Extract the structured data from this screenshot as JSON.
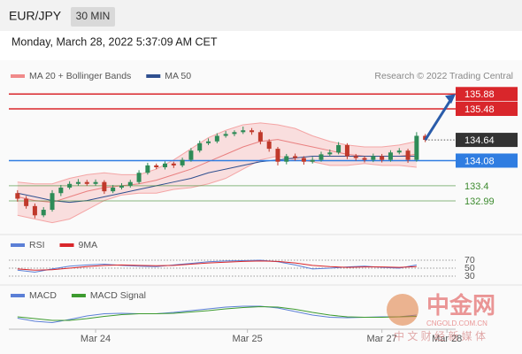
{
  "header": {
    "symbol": "EUR/JPY",
    "interval": "30 MIN",
    "datetime": "Monday, March 28, 2022 5:37:09 AM CET"
  },
  "chart_data": {
    "type": "candlestick",
    "legend": [
      {
        "name": "MA 20 + Bollinger Bands",
        "color": "#f08a8a"
      },
      {
        "name": "MA 50",
        "color": "#2f4f8f"
      }
    ],
    "credit": "Research © 2022 Trading Central",
    "xlim": [
      -1,
      50.5
    ],
    "ylim": [
      132.2,
      136.15
    ],
    "xticks": [
      {
        "value": 9,
        "label": "Mar 24"
      },
      {
        "value": 26.5,
        "label": "Mar 25"
      },
      {
        "value": 42,
        "label": "Mar 27"
      },
      {
        "value": 49.5,
        "label": "Mar 28"
      }
    ],
    "open": [
      133.2,
      133.05,
      132.85,
      132.6,
      132.75,
      133.2,
      133.35,
      133.45,
      133.5,
      133.45,
      133.5,
      133.25,
      133.35,
      133.4,
      133.5,
      133.75,
      133.95,
      133.9,
      134.0,
      133.95,
      134.1,
      134.35,
      134.55,
      134.6,
      134.75,
      134.8,
      134.85,
      134.9,
      134.85,
      134.6,
      134.4,
      134.05,
      134.2,
      134.15,
      134.05,
      134.1,
      134.25,
      134.3,
      134.5,
      134.2,
      134.15,
      134.1,
      134.2,
      134.1,
      134.3,
      134.35,
      134.1,
      134.75
    ],
    "high": [
      133.28,
      133.12,
      132.92,
      132.82,
      133.28,
      133.42,
      133.52,
      133.58,
      133.56,
      133.57,
      133.55,
      133.42,
      133.47,
      133.56,
      133.82,
      134.02,
      134.0,
      134.06,
      134.05,
      134.16,
      134.42,
      134.62,
      134.68,
      134.82,
      134.88,
      134.9,
      135.0,
      134.96,
      134.9,
      134.66,
      134.45,
      134.26,
      134.27,
      134.2,
      134.18,
      134.32,
      134.38,
      134.58,
      134.55,
      134.26,
      134.2,
      134.27,
      134.26,
      134.36,
      134.42,
      134.4,
      134.85,
      134.8
    ],
    "low": [
      132.97,
      132.78,
      132.52,
      132.55,
      132.7,
      133.12,
      133.3,
      133.4,
      133.4,
      133.4,
      133.18,
      133.2,
      133.3,
      133.35,
      133.45,
      133.7,
      133.85,
      133.84,
      133.88,
      133.9,
      134.05,
      134.3,
      134.5,
      134.55,
      134.7,
      134.74,
      134.8,
      134.78,
      134.52,
      134.32,
      133.95,
      133.98,
      134.08,
      133.97,
      134.0,
      134.05,
      134.2,
      134.25,
      134.12,
      134.08,
      134.03,
      134.04,
      134.03,
      134.05,
      134.25,
      134.02,
      134.05,
      134.58
    ],
    "close": [
      133.05,
      132.85,
      132.6,
      132.75,
      133.2,
      133.35,
      133.45,
      133.5,
      133.45,
      133.5,
      133.25,
      133.35,
      133.4,
      133.5,
      133.75,
      133.95,
      133.9,
      134.0,
      133.95,
      134.1,
      134.35,
      134.55,
      134.6,
      134.75,
      134.8,
      134.85,
      134.9,
      134.85,
      134.6,
      134.4,
      134.05,
      134.2,
      134.15,
      134.05,
      134.1,
      134.25,
      134.3,
      134.5,
      134.2,
      134.15,
      134.1,
      134.2,
      134.1,
      134.3,
      134.35,
      134.1,
      134.75,
      134.64
    ],
    "up_color": "#2e8b57",
    "down_color": "#c0392b",
    "ind_x": [
      0,
      2,
      4,
      6,
      8,
      10,
      12,
      14,
      16,
      18,
      20,
      22,
      24,
      26,
      28,
      30,
      32,
      34,
      36,
      38,
      40,
      42,
      44,
      46
    ],
    "ma20": [
      133.1,
      133.0,
      132.95,
      133.1,
      133.25,
      133.35,
      133.4,
      133.45,
      133.55,
      133.7,
      133.85,
      134.05,
      134.25,
      134.45,
      134.6,
      134.65,
      134.55,
      134.45,
      134.35,
      134.25,
      134.2,
      134.2,
      134.2,
      134.25
    ],
    "bb_upper": [
      133.5,
      133.45,
      133.45,
      133.6,
      133.7,
      133.75,
      133.7,
      133.7,
      133.85,
      134.1,
      134.4,
      134.7,
      134.9,
      135.05,
      135.1,
      135.05,
      134.95,
      134.75,
      134.6,
      134.5,
      134.45,
      134.45,
      134.5,
      134.6
    ],
    "bb_lower": [
      132.6,
      132.5,
      132.4,
      132.5,
      132.75,
      133.0,
      133.15,
      133.2,
      133.2,
      133.3,
      133.35,
      133.45,
      133.6,
      133.85,
      134.1,
      134.2,
      134.1,
      134.05,
      133.95,
      133.95,
      134.0,
      133.95,
      133.95,
      133.9
    ],
    "ma50": [
      133.2,
      133.1,
      133.0,
      132.95,
      133.0,
      133.1,
      133.2,
      133.3,
      133.4,
      133.5,
      133.6,
      133.75,
      133.85,
      133.95,
      134.05,
      134.1,
      134.15,
      134.2,
      134.2,
      134.2,
      134.2,
      134.2,
      134.2,
      134.2
    ],
    "levels": [
      {
        "value": 135.88,
        "color": "#d9262b",
        "boxed": true,
        "style": "solid"
      },
      {
        "value": 135.48,
        "color": "#d9262b",
        "boxed": true,
        "style": "solid"
      },
      {
        "value": 134.64,
        "color": "#333333",
        "boxed": true,
        "style": "dotted"
      },
      {
        "value": 134.08,
        "color": "#2f7de1",
        "boxed": true,
        "style": "solid"
      },
      {
        "value": 133.4,
        "color": "#3d8b2f",
        "boxed": false,
        "style": "solid"
      },
      {
        "value": 132.99,
        "color": "#3d8b2f",
        "boxed": false,
        "style": "solid"
      }
    ],
    "rsi": {
      "series": [
        {
          "name": "RSI",
          "color": "#5b7fd6",
          "values": [
            45,
            40,
            48,
            55,
            58,
            60,
            57,
            55,
            54,
            58,
            62,
            66,
            68,
            69,
            70,
            66,
            58,
            48,
            50,
            53,
            55,
            52,
            50,
            58
          ]
        },
        {
          "name": "9MA",
          "color": "#d9262b",
          "values": [
            48,
            45,
            46,
            50,
            54,
            57,
            58,
            57,
            56,
            57,
            60,
            63,
            65,
            67,
            68,
            67,
            63,
            57,
            54,
            52,
            53,
            53,
            52,
            54
          ]
        }
      ],
      "ylim": [
        0,
        100
      ],
      "yticks": [
        30,
        50,
        70
      ]
    },
    "macd": {
      "series": [
        {
          "name": "MACD",
          "color": "#5b7fd6",
          "values": [
            -0.05,
            -0.12,
            -0.15,
            -0.08,
            0.0,
            0.05,
            0.06,
            0.05,
            0.05,
            0.08,
            0.12,
            0.16,
            0.2,
            0.22,
            0.22,
            0.18,
            0.1,
            0.02,
            -0.03,
            -0.04,
            -0.03,
            -0.02,
            -0.02,
            0.02
          ]
        },
        {
          "name": "MACD Signal",
          "color": "#3d9b2f",
          "values": [
            -0.02,
            -0.06,
            -0.1,
            -0.1,
            -0.06,
            -0.01,
            0.03,
            0.05,
            0.05,
            0.06,
            0.09,
            0.12,
            0.16,
            0.19,
            0.21,
            0.2,
            0.15,
            0.08,
            0.02,
            -0.02,
            -0.03,
            -0.03,
            -0.02,
            -0.01
          ]
        }
      ],
      "ylim": [
        -0.3,
        0.3
      ]
    }
  },
  "watermark": {
    "name": "中金网",
    "site": "CNGOLD.COM.CN",
    "slogan": "中 文 财 经 新 媒 体"
  }
}
